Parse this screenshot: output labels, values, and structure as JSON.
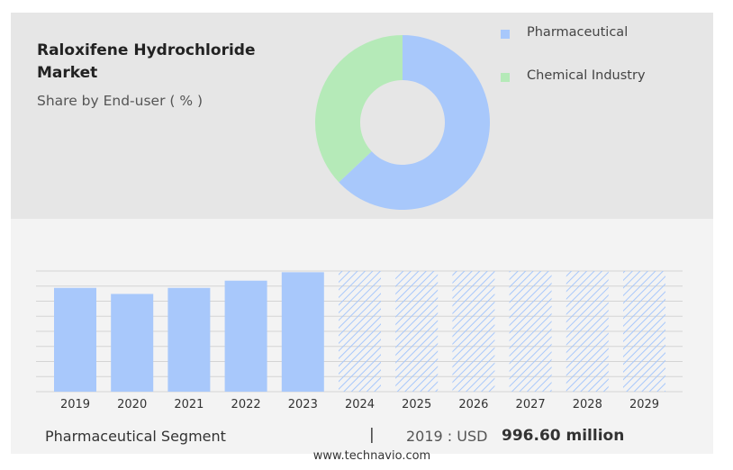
{
  "title": "Raloxifene Hydrochloride Market",
  "subtitle": "Share by End-user ( % )",
  "legend": [
    {
      "label": "Pharmaceutical",
      "color": "#a8c8fb"
    },
    {
      "label": "Chemical Industry",
      "color": "#b5eab8"
    }
  ],
  "footer": {
    "segment": "Pharmaceutical Segment",
    "separator": "|",
    "year_label": "2019 : USD",
    "value": "996.60 million",
    "site": "www.technavio.com"
  },
  "colors": {
    "bar": "#a8c8fb",
    "forecast_hatch": "#a8c8fb",
    "grid": "#d4d4d4"
  },
  "chart_data": [
    {
      "type": "pie",
      "style": "donut",
      "categories": [
        "Pharmaceutical",
        "Chemical Industry"
      ],
      "values": [
        63,
        37
      ]
    },
    {
      "type": "bar",
      "categories": [
        "2019",
        "2020",
        "2021",
        "2022",
        "2023",
        "2024",
        "2025",
        "2026",
        "2027",
        "2028",
        "2029"
      ],
      "values": [
        0.86,
        0.81,
        0.86,
        0.92,
        0.99,
        1.0,
        1.0,
        1.0,
        1.0,
        1.0,
        1.0
      ],
      "value_scale": "relative to chart max",
      "forecast_start": "2024",
      "grid": true
    }
  ]
}
